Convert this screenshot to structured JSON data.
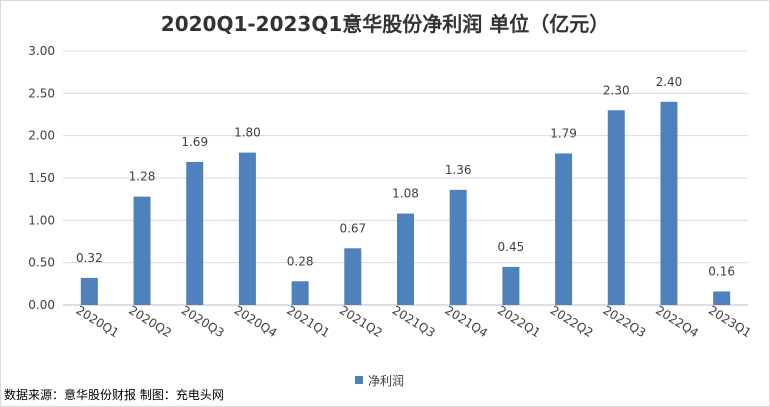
{
  "chart_data": {
    "type": "bar",
    "title": "2020Q1-2023Q1意华股份净利润 单位（亿元）",
    "categories": [
      "2020Q1",
      "2020Q2",
      "2020Q3",
      "2020Q4",
      "2021Q1",
      "2021Q2",
      "2021Q3",
      "2021Q4",
      "2022Q1",
      "2022Q2",
      "2022Q3",
      "2022Q4",
      "2023Q1"
    ],
    "series": [
      {
        "name": "净利润",
        "values": [
          0.32,
          1.28,
          1.69,
          1.8,
          0.28,
          0.67,
          1.08,
          1.36,
          0.45,
          1.79,
          2.3,
          2.4,
          0.16
        ]
      }
    ],
    "value_labels": [
      "0.32",
      "1.28",
      "1.69",
      "1.80",
      "0.28",
      "0.67",
      "1.08",
      "1.36",
      "0.45",
      "1.79",
      "2.30",
      "2.40",
      "0.16"
    ],
    "y_ticks": [
      "0.00",
      "0.50",
      "1.00",
      "1.50",
      "2.00",
      "2.50",
      "3.00"
    ],
    "ylim": [
      0,
      3
    ],
    "xlabel": "",
    "ylabel": "",
    "grid": true,
    "legend_position": "bottom",
    "bar_color": "#4f81bd"
  },
  "footer": {
    "source_note": "数据来源：意华股份财报 制图：充电头网"
  }
}
